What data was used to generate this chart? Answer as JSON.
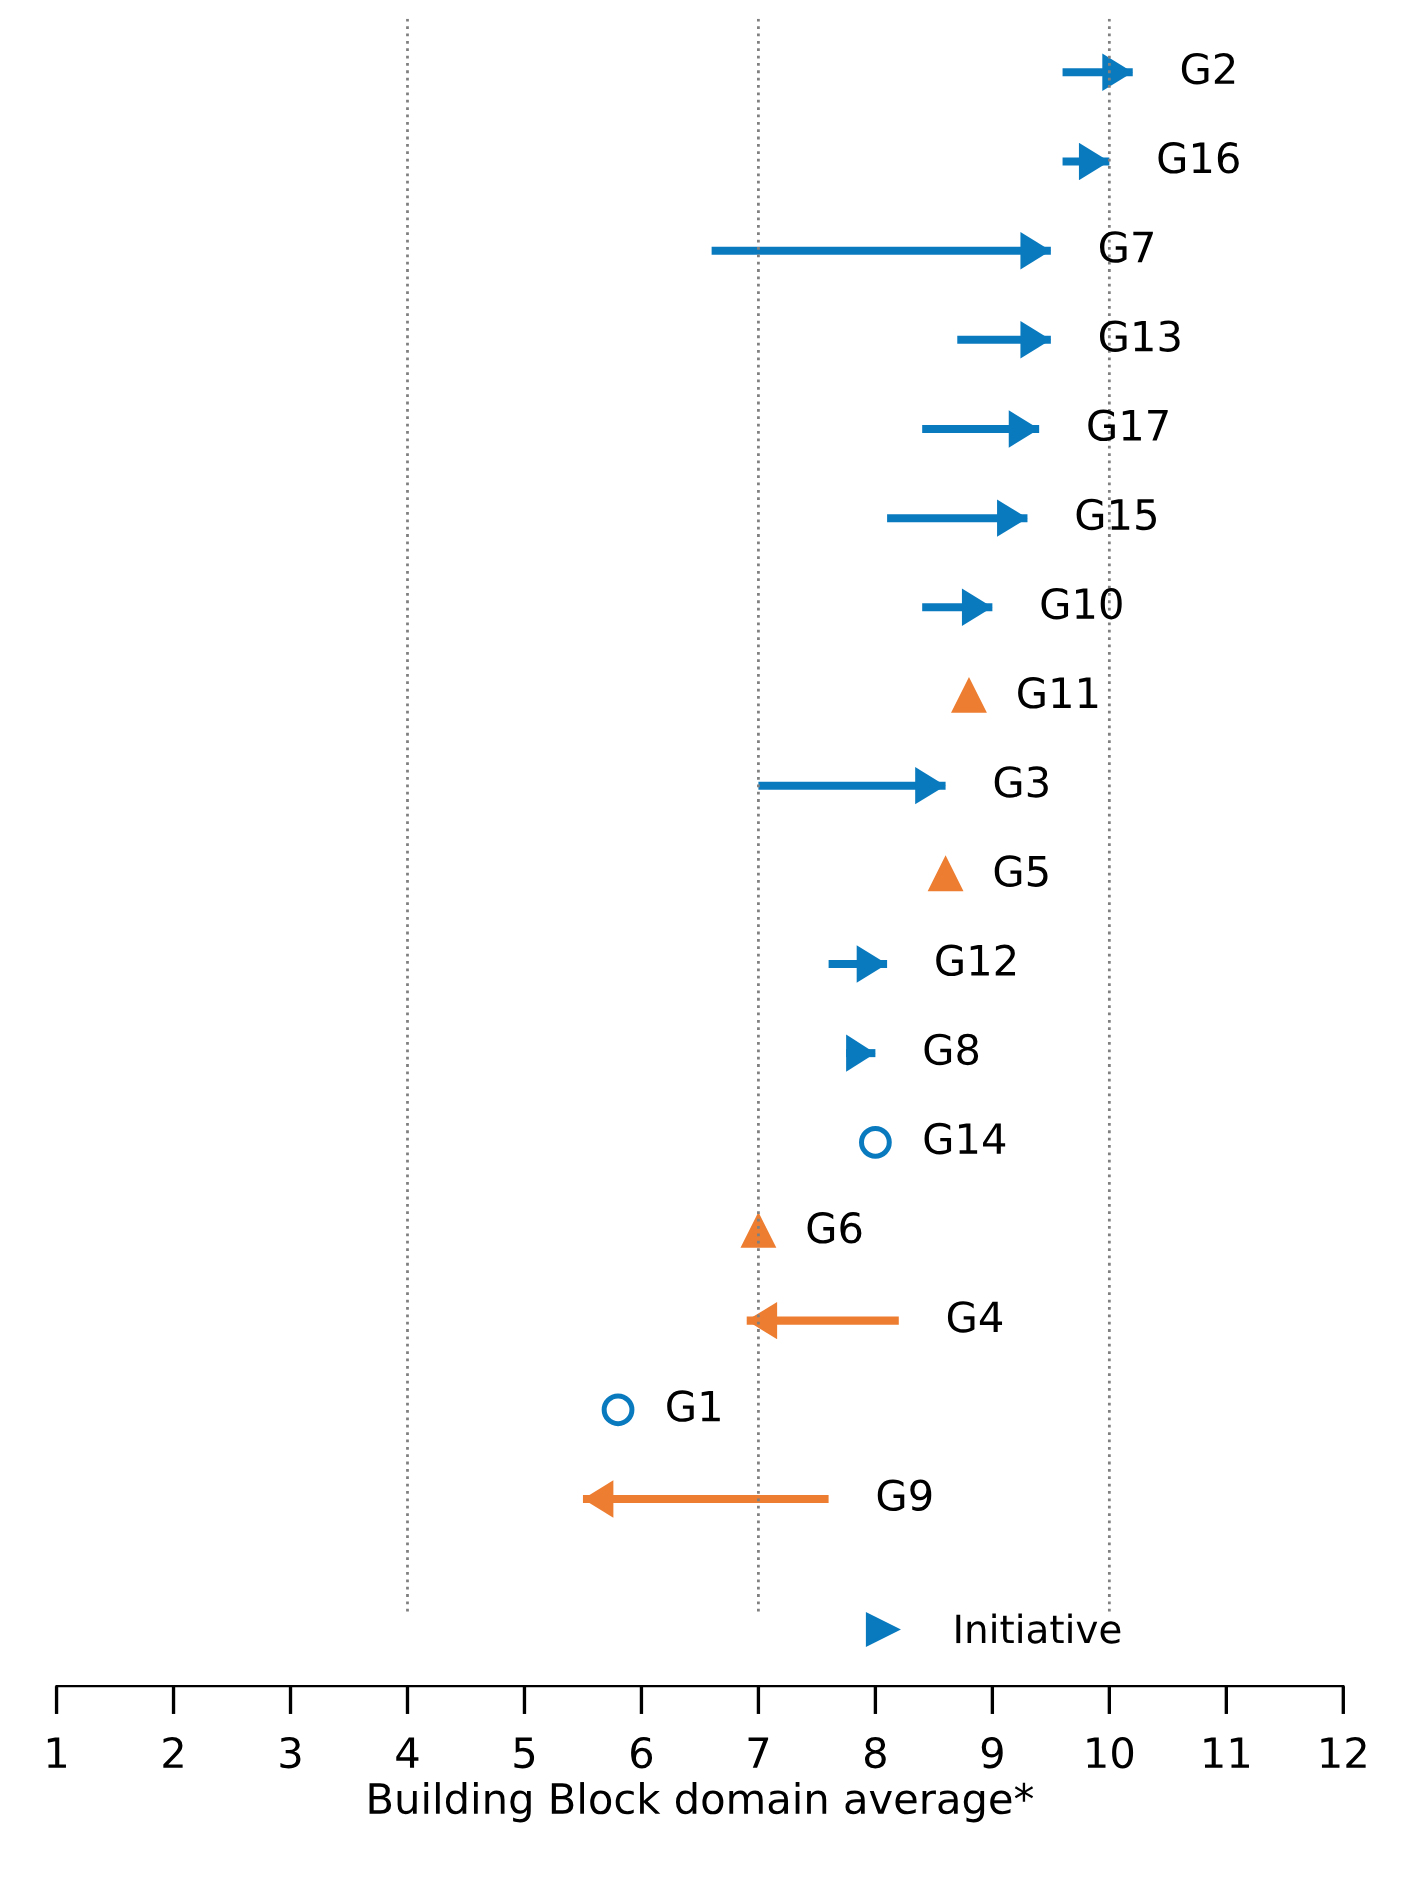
{
  "chart_data": {
    "type": "bar",
    "orientation": "horizontal",
    "xlabel": "Building Block domain average*",
    "categories": [
      "G2",
      "G16",
      "G7",
      "G13",
      "G17",
      "G15",
      "G10",
      "G11",
      "G3",
      "G5",
      "G12",
      "G8",
      "G14",
      "G6",
      "G4",
      "G1",
      "G9"
    ],
    "series": [
      {
        "name": "Initiative",
        "color": "#0a7abf",
        "base": [
          9.6,
          9.6,
          6.6,
          8.7,
          8.4,
          8.1,
          8.4,
          null,
          7.0,
          null,
          7.6,
          7.75,
          null,
          null,
          null,
          null,
          null
        ],
        "values": [
          0.6,
          0.4,
          2.9,
          0.8,
          1.0,
          1.2,
          0.6,
          null,
          1.6,
          null,
          0.5,
          0.25,
          null,
          null,
          null,
          null,
          null
        ]
      },
      {
        "color": "#ed7d31",
        "base": [
          null,
          null,
          null,
          null,
          null,
          null,
          null,
          null,
          null,
          null,
          null,
          null,
          null,
          null,
          8.2,
          null,
          7.6
        ],
        "values": [
          null,
          null,
          null,
          null,
          null,
          null,
          null,
          null,
          null,
          null,
          null,
          null,
          null,
          null,
          -1.3,
          null,
          -2.1
        ]
      },
      {
        "type": "scatter",
        "marker": "triangle",
        "color": "#ed7d31",
        "values": [
          null,
          null,
          null,
          null,
          null,
          null,
          null,
          8.8,
          null,
          8.6,
          null,
          null,
          null,
          7.0,
          null,
          null,
          null
        ]
      },
      {
        "type": "scatter",
        "marker": "circle",
        "color": "#0a7abf",
        "values": [
          null,
          null,
          null,
          null,
          null,
          null,
          null,
          null,
          null,
          null,
          null,
          null,
          8.0,
          null,
          null,
          5.8,
          null
        ]
      }
    ],
    "xlim": [
      1,
      12
    ],
    "xticks": [
      1,
      2,
      3,
      4,
      5,
      6,
      7,
      8,
      9,
      10,
      11,
      12
    ],
    "ref_lines": [
      {
        "axis": "x",
        "value": 4,
        "color": "#808080",
        "line_style": "dotted"
      },
      {
        "axis": "x",
        "value": 7,
        "color": "#808080",
        "line_style": "dotted"
      },
      {
        "axis": "x",
        "value": 10,
        "color": "#808080",
        "line_style": "dotted"
      }
    ],
    "legend": "bottom"
  }
}
